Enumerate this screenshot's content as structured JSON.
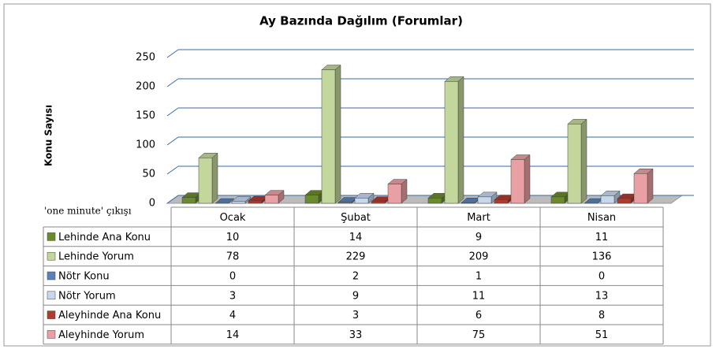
{
  "chart_data": {
    "type": "bar3d",
    "title": "Ay Bazında Dağılım (Forumlar)",
    "ylabel": "Konu Sayısı",
    "annotation": "'one minute' çıkışı",
    "categories": [
      "Ocak",
      "Şubat",
      "Mart",
      "Nisan"
    ],
    "series": [
      {
        "name": "Lehinde Ana Konu",
        "color": "#6a8a2e",
        "values": [
          10,
          14,
          9,
          11
        ]
      },
      {
        "name": "Lehinde Yorum",
        "color": "#c3d69b",
        "values": [
          78,
          229,
          209,
          136
        ]
      },
      {
        "name": "Nötr Konu",
        "color": "#5b82b8",
        "values": [
          0,
          2,
          1,
          0
        ]
      },
      {
        "name": "Nötr Yorum",
        "color": "#c6d7ee",
        "values": [
          3,
          9,
          11,
          13
        ]
      },
      {
        "name": "Aleyhinde Ana Konu",
        "color": "#b03a2e",
        "values": [
          4,
          3,
          6,
          8
        ]
      },
      {
        "name": "Aleyhinde Yorum",
        "color": "#e8a0a4",
        "values": [
          14,
          33,
          75,
          51
        ]
      }
    ],
    "ylim": [
      0,
      250
    ],
    "yticks": [
      0,
      50,
      100,
      150,
      200,
      250
    ],
    "grid": true,
    "data_table": true
  }
}
